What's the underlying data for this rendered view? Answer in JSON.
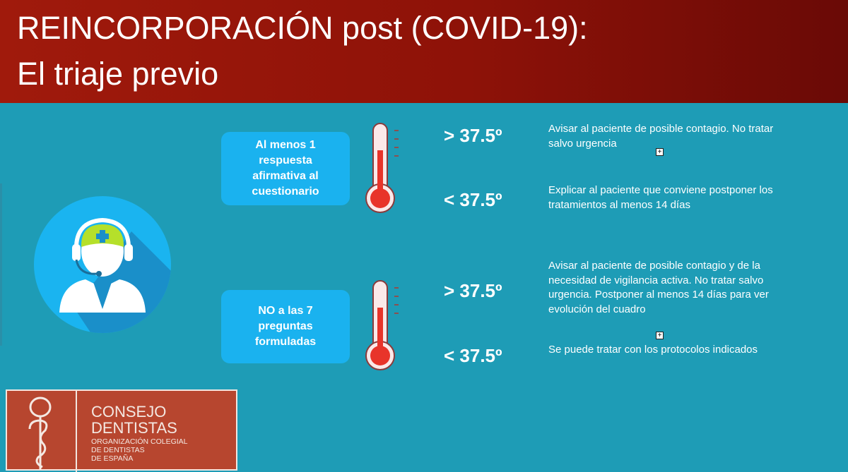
{
  "header": {
    "title_line1": "REINCORPORACIÓN post  (COVID-19):",
    "title_line2": "El triaje previo"
  },
  "icon": "receptionist-headset-nurse-icon",
  "groups": [
    {
      "condition": "Al menos 1 respuesta afirmativa al cuestionario",
      "rows": [
        {
          "temp": "> 37.5º",
          "text": "Avisar al paciente de posible contagio. No tratar salvo urgencia"
        },
        {
          "temp": "< 37.5º",
          "text": "Explicar al paciente que conviene postponer los tratamientos al menos 14 días"
        }
      ]
    },
    {
      "condition": "NO a las 7 preguntas formuladas",
      "rows": [
        {
          "temp": "> 37.5º",
          "text": "Avisar al paciente de posible contagio y de la necesidad de vigilancia activa. No tratar salvo urgencia. Postponer al menos 14 días para ver evolución del cuadro"
        },
        {
          "temp": "< 37.5º",
          "text": "Se puede tratar con los protocolos indicados"
        }
      ]
    }
  ],
  "logo": {
    "line1": "CONSEJO",
    "line2": "DENTISTAS",
    "sub1": "ORGANIZACIÓN COLEGIAL",
    "sub2": "DE DENTISTAS",
    "sub3": "DE ESPAÑA"
  },
  "colors": {
    "header": "#8e1208",
    "background": "#1e9cb6",
    "box": "#1ab2ef",
    "thermometer": "#e8342a",
    "logo": "#b7462f"
  }
}
